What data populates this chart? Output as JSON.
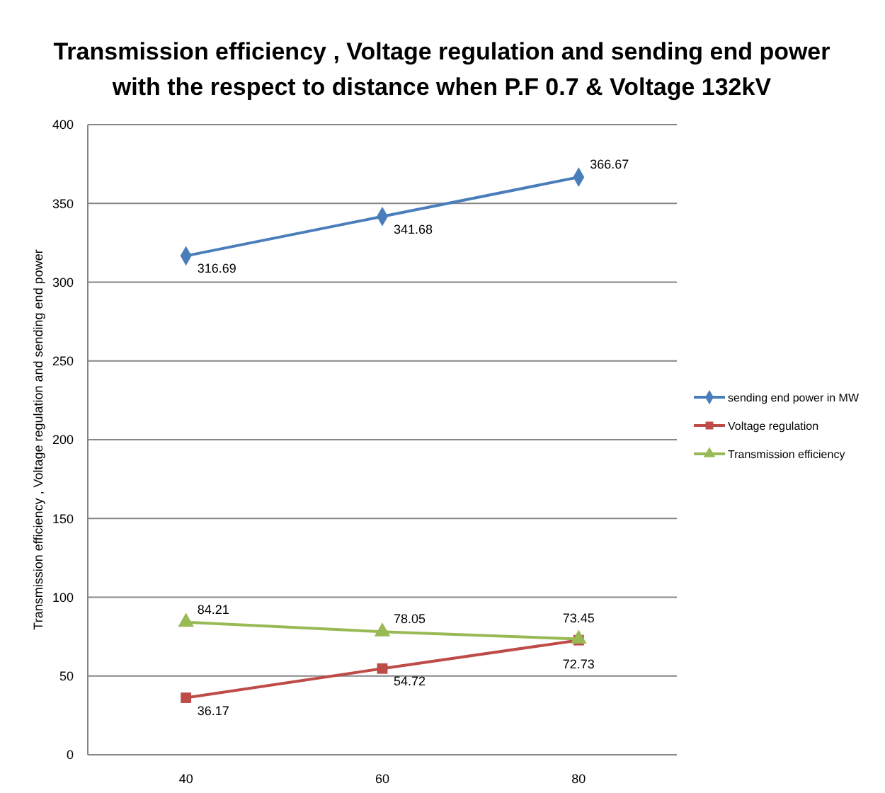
{
  "chart_data": {
    "type": "line",
    "title": "Transmission efficiency , Voltage regulation and sending end power with the respect to distance when P.F 0.7 & Voltage 132kV",
    "ylabel": "Transmission efficiency , Voltage regulation and sending end power",
    "categories": [
      "40",
      "60",
      "80"
    ],
    "series": [
      {
        "name": "sending end power in MW",
        "color": "#4a7ebb",
        "marker": "diamond",
        "values": [
          316.69,
          341.68,
          366.67
        ]
      },
      {
        "name": "Voltage regulation",
        "color": "#be4b48",
        "marker": "square",
        "values": [
          36.17,
          54.72,
          72.73
        ]
      },
      {
        "name": "Transmission efficiency",
        "color": "#98b954",
        "marker": "triangle",
        "values": [
          84.21,
          78.05,
          73.45
        ]
      }
    ],
    "ylim": [
      0,
      400
    ],
    "yticks": [
      0,
      50,
      100,
      150,
      200,
      250,
      300,
      350,
      400
    ],
    "grid": "y",
    "legend": "right",
    "data_labels": true
  }
}
